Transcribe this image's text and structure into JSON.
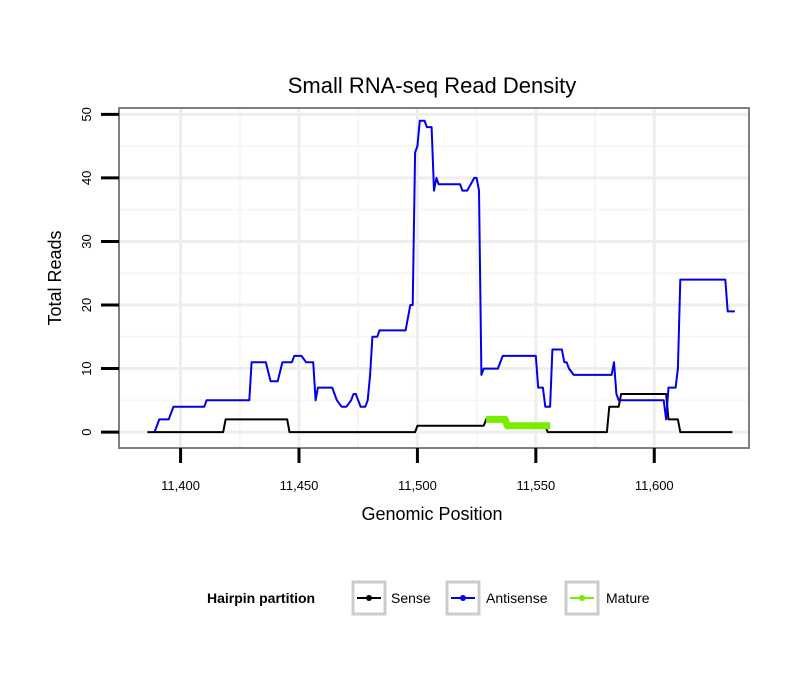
{
  "chart_data": {
    "type": "line",
    "title": "Small RNA-seq Read Density",
    "xlabel": "Genomic Position",
    "ylabel": "Total Reads",
    "xlim": [
      11374,
      11640
    ],
    "ylim": [
      -2.5,
      51
    ],
    "x_ticks": [
      11400,
      11450,
      11500,
      11550,
      11600
    ],
    "x_tick_labels": [
      "11,400",
      "11,450",
      "11,500",
      "11,550",
      "11,600"
    ],
    "y_ticks": [
      0,
      10,
      20,
      30,
      40,
      50
    ],
    "y_tick_labels": [
      "0",
      "10",
      "20",
      "30",
      "40",
      "50"
    ],
    "grid": true,
    "legend": {
      "title": "Hairpin partition",
      "position": "bottom",
      "entries": [
        "Sense",
        "Antisense",
        "Mature"
      ]
    },
    "series": [
      {
        "name": "Sense",
        "color": "#000000",
        "points": [
          [
            11386,
            0
          ],
          [
            11418,
            0
          ],
          [
            11419,
            2
          ],
          [
            11445,
            2
          ],
          [
            11446,
            0
          ],
          [
            11499,
            0
          ],
          [
            11500,
            1
          ],
          [
            11528,
            1
          ],
          [
            11529,
            2
          ],
          [
            11536,
            2
          ],
          [
            11537,
            1
          ],
          [
            11554,
            1
          ],
          [
            11555,
            0
          ],
          [
            11580,
            0
          ],
          [
            11581,
            4
          ],
          [
            11585,
            4
          ],
          [
            11586,
            6
          ],
          [
            11605,
            6
          ],
          [
            11606,
            2
          ],
          [
            11610,
            2
          ],
          [
            11611,
            0
          ],
          [
            11633,
            0
          ]
        ]
      },
      {
        "name": "Antisense",
        "color": "#0000ee",
        "points": [
          [
            11389,
            0
          ],
          [
            11391,
            2
          ],
          [
            11395,
            2
          ],
          [
            11397,
            4
          ],
          [
            11410,
            4
          ],
          [
            11411,
            5
          ],
          [
            11429,
            5
          ],
          [
            11430,
            11
          ],
          [
            11436,
            11
          ],
          [
            11438,
            8
          ],
          [
            11441,
            8
          ],
          [
            11443,
            11
          ],
          [
            11447,
            11
          ],
          [
            11448,
            12
          ],
          [
            11451,
            12
          ],
          [
            11453,
            11
          ],
          [
            11456,
            11
          ],
          [
            11457,
            5
          ],
          [
            11458,
            7
          ],
          [
            11464,
            7
          ],
          [
            11466,
            5
          ],
          [
            11468,
            4
          ],
          [
            11470,
            4
          ],
          [
            11472,
            5
          ],
          [
            11473,
            6
          ],
          [
            11474,
            6
          ],
          [
            11475,
            5
          ],
          [
            11476,
            4
          ],
          [
            11478,
            4
          ],
          [
            11479,
            5
          ],
          [
            11480,
            9
          ],
          [
            11481,
            15
          ],
          [
            11483,
            15
          ],
          [
            11484,
            16
          ],
          [
            11495,
            16
          ],
          [
            11497,
            20
          ],
          [
            11498,
            20
          ],
          [
            11499,
            44
          ],
          [
            11500,
            45
          ],
          [
            11501,
            49
          ],
          [
            11503,
            49
          ],
          [
            11504,
            48
          ],
          [
            11506,
            48
          ],
          [
            11507,
            38
          ],
          [
            11508,
            40
          ],
          [
            11509,
            39
          ],
          [
            11518,
            39
          ],
          [
            11519,
            38
          ],
          [
            11521,
            38
          ],
          [
            11524,
            40
          ],
          [
            11525,
            40
          ],
          [
            11526,
            38
          ],
          [
            11527,
            9
          ],
          [
            11528,
            10
          ],
          [
            11534,
            10
          ],
          [
            11536,
            12
          ],
          [
            11550,
            12
          ],
          [
            11551,
            7
          ],
          [
            11553,
            7
          ],
          [
            11554,
            4
          ],
          [
            11556,
            4
          ],
          [
            11557,
            13
          ],
          [
            11561,
            13
          ],
          [
            11562,
            11
          ],
          [
            11563,
            11
          ],
          [
            11564,
            10
          ],
          [
            11566,
            9
          ],
          [
            11582,
            9
          ],
          [
            11583,
            11
          ],
          [
            11584,
            6
          ],
          [
            11585,
            5
          ],
          [
            11604,
            5
          ],
          [
            11605,
            2
          ],
          [
            11606,
            7
          ],
          [
            11609,
            7
          ],
          [
            11610,
            10
          ],
          [
            11611,
            24
          ],
          [
            11630,
            24
          ],
          [
            11631,
            19
          ],
          [
            11634,
            19
          ]
        ]
      },
      {
        "name": "Mature",
        "color": "#77ee00",
        "points": [
          [
            11529,
            2
          ],
          [
            11537,
            2
          ],
          [
            11538,
            1
          ],
          [
            11556,
            1
          ]
        ]
      }
    ]
  }
}
